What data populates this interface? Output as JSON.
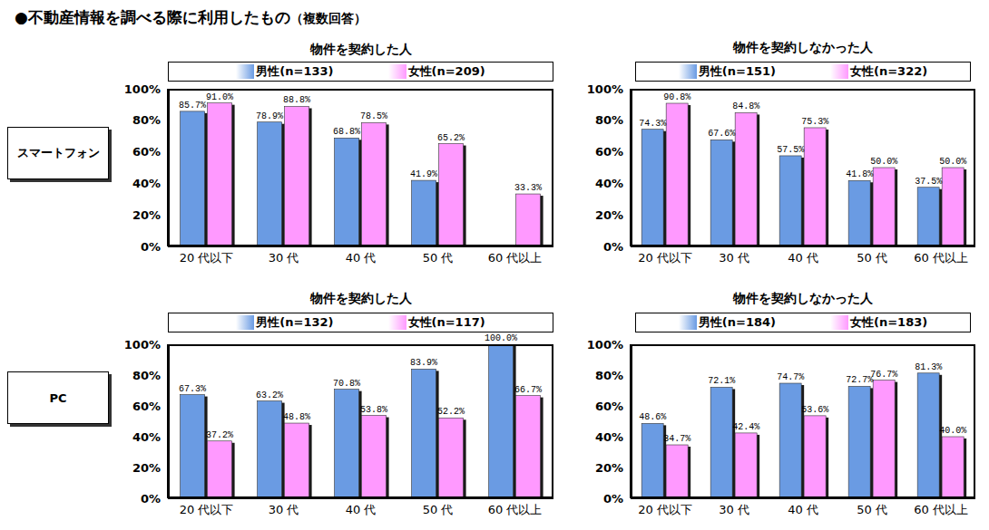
{
  "title": "●不動産情報を調べる際に利用したもの",
  "subtitle": "（複数回答）",
  "row_labels": [
    "スマートフォン",
    "PC"
  ],
  "chart_data": [
    {
      "type": "bar",
      "title": "物件を契約した人",
      "categories": [
        "20 代以下",
        "30 代",
        "40 代",
        "50 代",
        "60 代以上"
      ],
      "series": [
        {
          "name": "男性(n=133)",
          "color": "#6a9be3",
          "values": [
            85.7,
            78.9,
            68.8,
            41.9,
            null
          ],
          "value_labels": [
            "85.7%",
            "78.9%",
            "68.8%",
            "41.9%",
            null
          ]
        },
        {
          "name": "女性(n=209)",
          "color": "#ff99ff",
          "values": [
            91.0,
            88.8,
            78.5,
            65.2,
            33.3
          ],
          "value_labels": [
            "91.0%",
            "88.8%",
            "78.5%",
            "65.2%",
            "33.3%"
          ]
        }
      ],
      "ylim": [
        0,
        100
      ],
      "yticks": [
        {
          "value": 0,
          "label": "0%"
        },
        {
          "value": 20,
          "label": "20%"
        },
        {
          "value": 40,
          "label": "40%"
        },
        {
          "value": 60,
          "label": "60%"
        },
        {
          "value": 80,
          "label": "80%"
        },
        {
          "value": 100,
          "label": "100%"
        }
      ],
      "grid": false,
      "legend": "top",
      "data_labels": true
    },
    {
      "type": "bar",
      "title": "物件を契約しなかった人",
      "categories": [
        "20 代以下",
        "30 代",
        "40 代",
        "50 代",
        "60 代以上"
      ],
      "series": [
        {
          "name": "男性(n=151)",
          "color": "#6a9be3",
          "values": [
            74.3,
            67.6,
            57.5,
            41.8,
            37.5
          ],
          "value_labels": [
            "74.3%",
            "67.6%",
            "57.5%",
            "41.8%",
            "37.5%"
          ]
        },
        {
          "name": "女性(n=322)",
          "color": "#ff99ff",
          "values": [
            90.8,
            84.8,
            75.3,
            50.0,
            50.0
          ],
          "value_labels": [
            "90.8%",
            "84.8%",
            "75.3%",
            "50.0%",
            "50.0%"
          ]
        }
      ],
      "ylim": [
        0,
        100
      ],
      "yticks": [
        {
          "value": 0,
          "label": "0%"
        },
        {
          "value": 20,
          "label": "20%"
        },
        {
          "value": 40,
          "label": "40%"
        },
        {
          "value": 60,
          "label": "60%"
        },
        {
          "value": 80,
          "label": "80%"
        },
        {
          "value": 100,
          "label": "100%"
        }
      ],
      "grid": false,
      "legend": "top",
      "data_labels": true
    },
    {
      "type": "bar",
      "title": "物件を契約した人",
      "categories": [
        "20 代以下",
        "30 代",
        "40 代",
        "50 代",
        "60 代以上"
      ],
      "series": [
        {
          "name": "男性(n=132)",
          "color": "#6a9be3",
          "values": [
            67.3,
            63.2,
            70.8,
            83.9,
            100.0
          ],
          "value_labels": [
            "67.3%",
            "63.2%",
            "70.8%",
            "83.9%",
            "100.0%"
          ]
        },
        {
          "name": "女性(n=117)",
          "color": "#ff99ff",
          "values": [
            37.2,
            48.8,
            53.8,
            52.2,
            66.7
          ],
          "value_labels": [
            "37.2%",
            "48.8%",
            "53.8%",
            "52.2%",
            "66.7%"
          ]
        }
      ],
      "ylim": [
        0,
        100
      ],
      "yticks": [
        {
          "value": 0,
          "label": "0%"
        },
        {
          "value": 20,
          "label": "20%"
        },
        {
          "value": 40,
          "label": "40%"
        },
        {
          "value": 60,
          "label": "60%"
        },
        {
          "value": 80,
          "label": "80%"
        },
        {
          "value": 100,
          "label": "100%"
        }
      ],
      "grid": false,
      "legend": "top",
      "data_labels": true
    },
    {
      "type": "bar",
      "title": "物件を契約しなかった人",
      "categories": [
        "20 代以下",
        "30 代",
        "40 代",
        "50 代",
        "60 代以上"
      ],
      "series": [
        {
          "name": "男性(n=184)",
          "color": "#6a9be3",
          "values": [
            48.6,
            72.1,
            74.7,
            72.7,
            81.3
          ],
          "value_labels": [
            "48.6%",
            "72.1%",
            "74.7%",
            "72.7%",
            "81.3%"
          ]
        },
        {
          "name": "女性(n=183)",
          "color": "#ff99ff",
          "values": [
            34.7,
            42.4,
            53.6,
            76.7,
            40.0
          ],
          "value_labels": [
            "34.7%",
            "42.4%",
            "53.6%",
            "76.7%",
            "40.0%"
          ]
        }
      ],
      "ylim": [
        0,
        100
      ],
      "yticks": [
        {
          "value": 0,
          "label": "0%"
        },
        {
          "value": 20,
          "label": "20%"
        },
        {
          "value": 40,
          "label": "40%"
        },
        {
          "value": 60,
          "label": "60%"
        },
        {
          "value": 80,
          "label": "80%"
        },
        {
          "value": 100,
          "label": "100%"
        }
      ],
      "grid": false,
      "legend": "top",
      "data_labels": true
    }
  ]
}
